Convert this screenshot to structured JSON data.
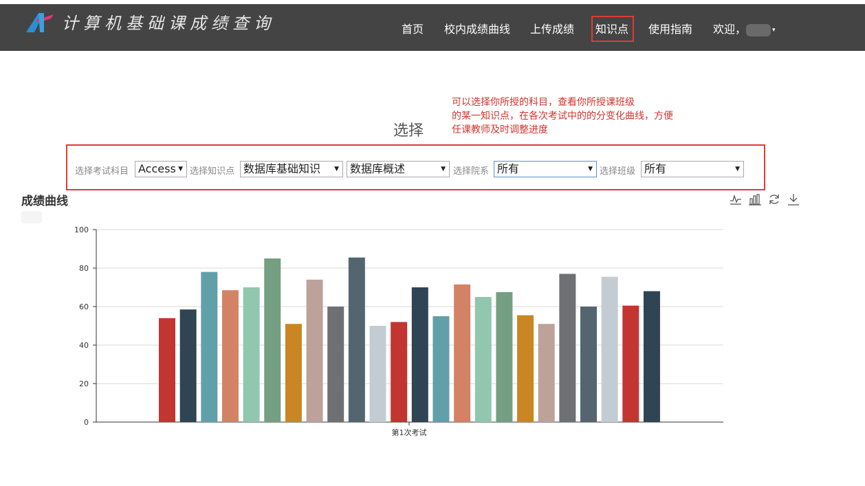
{
  "navbar": {
    "brand_title": "计算机基础课成绩查询",
    "items": [
      {
        "label": "首页"
      },
      {
        "label": "校内成绩曲线"
      },
      {
        "label": "上传成绩"
      },
      {
        "label": "知识点"
      },
      {
        "label": "使用指南"
      }
    ],
    "welcome": "欢迎，"
  },
  "annotation": {
    "lines": [
      "可以选择你所授的科目，查看你所授课班级",
      "的某一知识点，在各次考试中的的分变化曲线，方便",
      "任课教师及时调整进度"
    ]
  },
  "section_title": "选择",
  "filters": {
    "subject_label": "选择考试科目",
    "subject_value": "Access",
    "knowledge_label": "选择知识点",
    "knowledge_value1": "数据库基础知识",
    "knowledge_value2": "数据库概述",
    "college_label": "选择院系",
    "college_value": "所有",
    "class_label": "选择班级",
    "class_value": "所有"
  },
  "chart_title": "成绩曲线",
  "toolbox": [
    "line-chart-icon",
    "bar-chart-icon",
    "refresh-icon",
    "download-icon"
  ],
  "colors": {
    "navbar_bg": "#444444",
    "highlight": "#e03b35",
    "palette": [
      "#c23531",
      "#2f4554",
      "#61a0a8",
      "#d48265",
      "#91c7ae",
      "#749f83",
      "#ca8622",
      "#bda29a",
      "#6e7074",
      "#546570",
      "#c4ccd3"
    ]
  },
  "chart_data": {
    "type": "bar",
    "categories": [
      "第1次考试"
    ],
    "ylim": [
      0,
      100
    ],
    "yticks": [
      0,
      20,
      40,
      60,
      80,
      100
    ],
    "grid": true,
    "series": [
      {
        "values": [
          54
        ]
      },
      {
        "values": [
          58.5
        ]
      },
      {
        "values": [
          78
        ]
      },
      {
        "values": [
          68.5
        ]
      },
      {
        "values": [
          70
        ]
      },
      {
        "values": [
          85
        ]
      },
      {
        "values": [
          51
        ]
      },
      {
        "values": [
          74
        ]
      },
      {
        "values": [
          60
        ]
      },
      {
        "values": [
          85.5
        ]
      },
      {
        "values": [
          50
        ]
      },
      {
        "values": [
          52
        ]
      },
      {
        "values": [
          70
        ]
      },
      {
        "values": [
          55
        ]
      },
      {
        "values": [
          71.5
        ]
      },
      {
        "values": [
          65
        ]
      },
      {
        "values": [
          67.5
        ]
      },
      {
        "values": [
          55.5
        ]
      },
      {
        "values": [
          51
        ]
      },
      {
        "values": [
          77
        ]
      },
      {
        "values": [
          60
        ]
      },
      {
        "values": [
          75.5
        ]
      },
      {
        "values": [
          60.5
        ]
      },
      {
        "values": [
          68
        ]
      }
    ]
  }
}
